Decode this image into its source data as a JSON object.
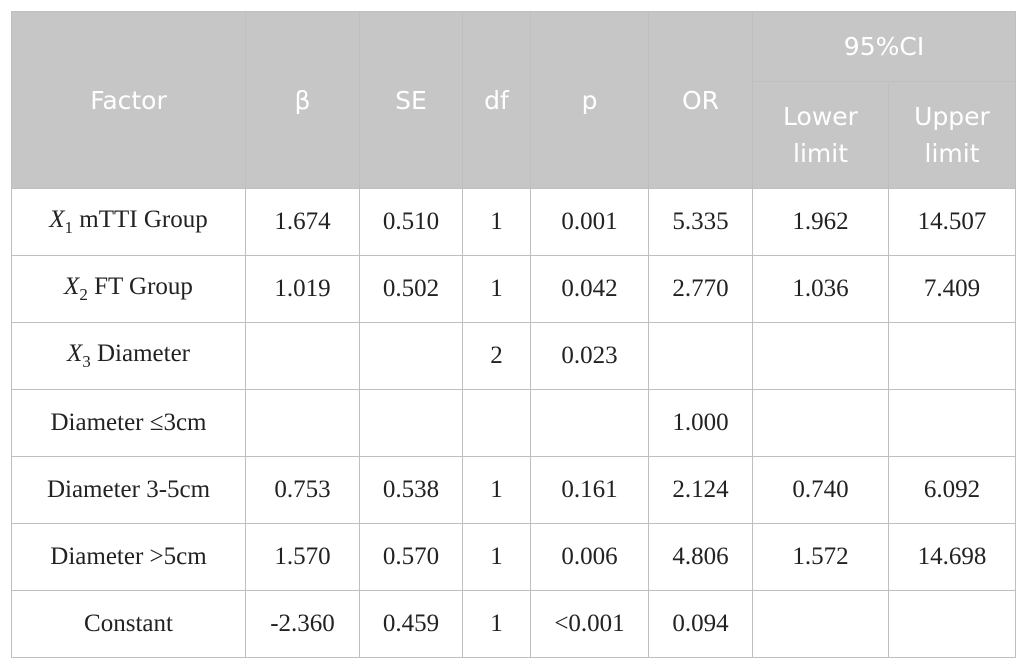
{
  "table": {
    "headers": {
      "factor": "Factor",
      "beta": "β",
      "se": "SE",
      "df": "df",
      "p": "p",
      "or": "OR",
      "ci": "95%CI",
      "lower": "Lower limit",
      "upper": "Upper limit"
    },
    "rows": [
      {
        "var": "X",
        "sub": "1",
        "label": " mTTI Group",
        "beta": "1.674",
        "se": "0.510",
        "df": "1",
        "p": "0.001",
        "or": "5.335",
        "lower": "1.962",
        "upper": "14.507"
      },
      {
        "var": "X",
        "sub": "2",
        "label": " FT Group",
        "beta": "1.019",
        "se": "0.502",
        "df": "1",
        "p": "0.042",
        "or": "2.770",
        "lower": "1.036",
        "upper": "7.409"
      },
      {
        "var": "X",
        "sub": "3",
        "label": " Diameter",
        "beta": "",
        "se": "",
        "df": "2",
        "p": "0.023",
        "or": "",
        "lower": "",
        "upper": ""
      },
      {
        "var": "",
        "sub": "",
        "label": "Diameter ≤3cm",
        "beta": "",
        "se": "",
        "df": "",
        "p": "",
        "or": "1.000",
        "lower": "",
        "upper": ""
      },
      {
        "var": "",
        "sub": "",
        "label": "Diameter 3-5cm",
        "beta": "0.753",
        "se": "0.538",
        "df": "1",
        "p": "0.161",
        "or": "2.124",
        "lower": "0.740",
        "upper": "6.092"
      },
      {
        "var": "",
        "sub": "",
        "label": "Diameter >5cm",
        "beta": "1.570",
        "se": "0.570",
        "df": "1",
        "p": "0.006",
        "or": "4.806",
        "lower": "1.572",
        "upper": "14.698"
      },
      {
        "var": "",
        "sub": "",
        "label": "Constant",
        "beta": "-2.360",
        "se": "0.459",
        "df": "1",
        "p": "<0.001",
        "or": "0.094",
        "lower": "",
        "upper": ""
      }
    ]
  }
}
